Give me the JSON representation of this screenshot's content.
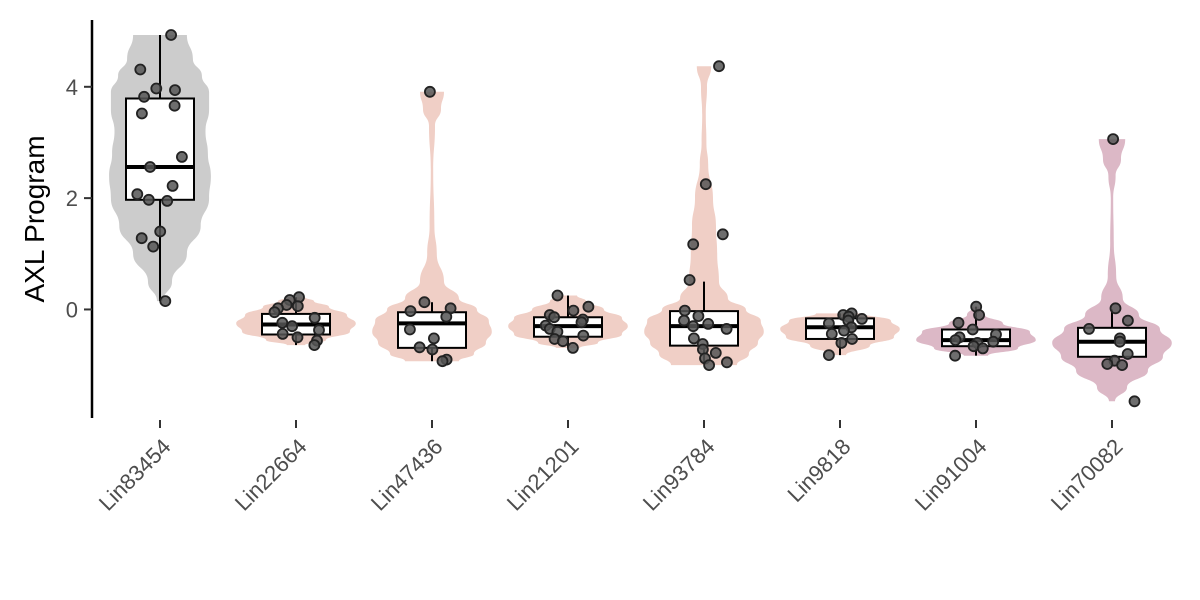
{
  "chart_data": {
    "type": "violin",
    "title": "",
    "xlabel": "",
    "ylabel": "AXL Program",
    "ylim": [
      -1.95,
      5.2
    ],
    "yticks": [
      0,
      2,
      4
    ],
    "grid": false,
    "legend": "none",
    "categories": [
      "Lin83454",
      "Lin22664",
      "Lin47436",
      "Lin21201",
      "Lin93784",
      "Lin9818",
      "Lin91004",
      "Lin70082"
    ],
    "groups": [
      {
        "name": "Lin83454",
        "color": "#cccccc",
        "box": {
          "min": 0.15,
          "q1": 1.97,
          "median": 2.56,
          "q3": 3.79,
          "max": 4.93
        },
        "points": [
          4.93,
          4.31,
          3.97,
          3.94,
          3.82,
          3.66,
          3.52,
          2.74,
          2.56,
          2.22,
          2.07,
          1.97,
          1.95,
          1.4,
          1.28,
          1.13,
          0.15
        ],
        "violin": [
          [
            0.15,
            0.05
          ],
          [
            0.5,
            0.2
          ],
          [
            1.0,
            0.45
          ],
          [
            1.5,
            0.68
          ],
          [
            2.0,
            0.82
          ],
          [
            2.4,
            0.85
          ],
          [
            2.8,
            0.8
          ],
          [
            3.2,
            0.76
          ],
          [
            3.6,
            0.82
          ],
          [
            3.9,
            0.82
          ],
          [
            4.2,
            0.7
          ],
          [
            4.5,
            0.55
          ],
          [
            4.93,
            0.45
          ]
        ]
      },
      {
        "name": "Lin22664",
        "color": "#f0cfc6",
        "box": {
          "min": -0.64,
          "q1": -0.45,
          "median": -0.27,
          "q3": -0.08,
          "max": 0.22
        },
        "points": [
          0.22,
          0.17,
          0.08,
          0.06,
          0.02,
          -0.05,
          -0.15,
          -0.24,
          -0.3,
          -0.37,
          -0.44,
          -0.5,
          -0.56,
          -0.64
        ],
        "violin": [
          [
            -0.64,
            0.15
          ],
          [
            -0.55,
            0.5
          ],
          [
            -0.4,
            0.9
          ],
          [
            -0.25,
            1.0
          ],
          [
            -0.1,
            0.85
          ],
          [
            0.05,
            0.55
          ],
          [
            0.15,
            0.3
          ],
          [
            0.22,
            0.15
          ]
        ]
      },
      {
        "name": "Lin47436",
        "color": "#f0cfc6",
        "box": {
          "min": -0.93,
          "q1": -0.69,
          "median": -0.25,
          "q3": -0.05,
          "max": 0.13
        },
        "points": [
          3.91,
          0.13,
          0.02,
          -0.03,
          -0.13,
          -0.36,
          -0.52,
          -0.68,
          -0.72,
          -0.9,
          -0.93
        ],
        "violin": [
          [
            -0.93,
            0.45
          ],
          [
            -0.8,
            0.7
          ],
          [
            -0.6,
            0.9
          ],
          [
            -0.4,
            1.0
          ],
          [
            -0.2,
            0.95
          ],
          [
            0.0,
            0.75
          ],
          [
            0.2,
            0.45
          ],
          [
            0.5,
            0.2
          ],
          [
            1.0,
            0.08
          ],
          [
            1.5,
            0.04
          ],
          [
            2.5,
            0.02
          ],
          [
            3.3,
            0.05
          ],
          [
            3.6,
            0.15
          ],
          [
            3.91,
            0.2
          ]
        ]
      },
      {
        "name": "Lin21201",
        "color": "#f0cfc6",
        "box": {
          "min": -0.69,
          "q1": -0.49,
          "median": -0.3,
          "q3": -0.14,
          "max": 0.25
        },
        "points": [
          0.25,
          0.05,
          -0.02,
          -0.1,
          -0.14,
          -0.18,
          -0.23,
          -0.29,
          -0.35,
          -0.4,
          -0.47,
          -0.53,
          -0.57,
          -0.69
        ],
        "violin": [
          [
            -0.69,
            0.2
          ],
          [
            -0.6,
            0.5
          ],
          [
            -0.45,
            0.9
          ],
          [
            -0.3,
            1.0
          ],
          [
            -0.15,
            0.9
          ],
          [
            0.0,
            0.6
          ],
          [
            0.15,
            0.3
          ],
          [
            0.25,
            0.15
          ]
        ]
      },
      {
        "name": "Lin93784",
        "color": "#f0cfc6",
        "box": {
          "min": -0.95,
          "q1": -0.65,
          "median": -0.3,
          "q3": -0.03,
          "max": 0.5
        },
        "points": [
          4.37,
          2.25,
          1.35,
          1.17,
          0.53,
          -0.02,
          -0.12,
          -0.2,
          -0.26,
          -0.3,
          -0.35,
          -0.52,
          -0.62,
          -0.72,
          -0.78,
          -0.88,
          -0.95,
          -1.0
        ],
        "violin": [
          [
            -1.0,
            0.55
          ],
          [
            -0.8,
            0.75
          ],
          [
            -0.6,
            0.9
          ],
          [
            -0.4,
            1.0
          ],
          [
            -0.2,
            0.95
          ],
          [
            0.0,
            0.7
          ],
          [
            0.2,
            0.4
          ],
          [
            0.5,
            0.25
          ],
          [
            1.0,
            0.22
          ],
          [
            1.5,
            0.2
          ],
          [
            2.0,
            0.15
          ],
          [
            2.6,
            0.07
          ],
          [
            3.0,
            0.04
          ],
          [
            3.5,
            0.03
          ],
          [
            4.0,
            0.05
          ],
          [
            4.37,
            0.12
          ]
        ]
      },
      {
        "name": "Lin9818",
        "color": "#f0cfc6",
        "box": {
          "min": -0.82,
          "q1": -0.53,
          "median": -0.32,
          "q3": -0.16,
          "max": -0.07
        },
        "points": [
          -0.07,
          -0.1,
          -0.13,
          -0.17,
          -0.2,
          -0.25,
          -0.32,
          -0.38,
          -0.44,
          -0.53,
          -0.6,
          -0.82
        ],
        "violin": [
          [
            -0.82,
            0.1
          ],
          [
            -0.65,
            0.5
          ],
          [
            -0.5,
            0.9
          ],
          [
            -0.35,
            1.0
          ],
          [
            -0.2,
            0.85
          ],
          [
            -0.07,
            0.4
          ]
        ]
      },
      {
        "name": "Lin91004",
        "color": "#dcb8c6",
        "box": {
          "min": -0.83,
          "q1": -0.66,
          "median": -0.55,
          "q3": -0.36,
          "max": 0.05
        },
        "points": [
          0.05,
          -0.1,
          -0.24,
          -0.36,
          -0.45,
          -0.5,
          -0.55,
          -0.58,
          -0.6,
          -0.66,
          -0.7,
          -0.83
        ],
        "violin": [
          [
            -0.83,
            0.2
          ],
          [
            -0.7,
            0.7
          ],
          [
            -0.55,
            1.0
          ],
          [
            -0.4,
            0.9
          ],
          [
            -0.25,
            0.45
          ],
          [
            -0.1,
            0.15
          ],
          [
            0.05,
            0.05
          ]
        ]
      },
      {
        "name": "Lin70082",
        "color": "#dcb8c6",
        "box": {
          "min": -1.0,
          "q1": -0.85,
          "median": -0.58,
          "q3": -0.33,
          "max": 0.0
        },
        "points": [
          3.06,
          0.02,
          -0.2,
          -0.35,
          -0.52,
          -0.58,
          -0.8,
          -0.92,
          -0.98,
          -1.0,
          -1.65
        ],
        "violin": [
          [
            -1.65,
            0.05
          ],
          [
            -1.4,
            0.25
          ],
          [
            -1.1,
            0.6
          ],
          [
            -0.85,
            0.85
          ],
          [
            -0.6,
            1.0
          ],
          [
            -0.35,
            0.8
          ],
          [
            -0.1,
            0.45
          ],
          [
            0.2,
            0.18
          ],
          [
            0.6,
            0.07
          ],
          [
            1.2,
            0.03
          ],
          [
            2.0,
            0.02
          ],
          [
            2.4,
            0.06
          ],
          [
            2.7,
            0.15
          ],
          [
            3.06,
            0.22
          ]
        ]
      }
    ]
  }
}
